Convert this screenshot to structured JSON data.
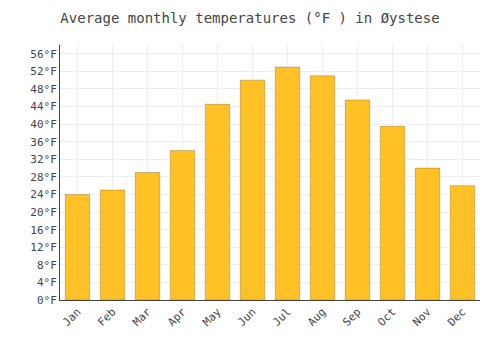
{
  "chart_data": {
    "type": "bar",
    "title": "Average monthly temperatures (°F ) in Øystese",
    "categories": [
      "Jan",
      "Feb",
      "Mar",
      "Apr",
      "May",
      "Jun",
      "Jul",
      "Aug",
      "Sep",
      "Oct",
      "Nov",
      "Dec"
    ],
    "values": [
      24.0,
      25.0,
      29.0,
      34.0,
      44.5,
      50.0,
      53.0,
      51.0,
      45.5,
      39.5,
      30.0,
      26.0
    ],
    "color": "#FFC125",
    "ylim": [
      0,
      58
    ],
    "yticks": [
      {
        "value": 0,
        "label": "0°F"
      },
      {
        "value": 4,
        "label": "4°F"
      },
      {
        "value": 8,
        "label": "8°F"
      },
      {
        "value": 12,
        "label": "12°F"
      },
      {
        "value": 16,
        "label": "16°F"
      },
      {
        "value": 20,
        "label": "20°F"
      },
      {
        "value": 24,
        "label": "24°F"
      },
      {
        "value": 28,
        "label": "28°F"
      },
      {
        "value": 32,
        "label": "32°F"
      },
      {
        "value": 36,
        "label": "36°F"
      },
      {
        "value": 40,
        "label": "40°F"
      },
      {
        "value": 44,
        "label": "44°F"
      },
      {
        "value": 48,
        "label": "48°F"
      },
      {
        "value": 52,
        "label": "52°F"
      },
      {
        "value": 56,
        "label": "56°F"
      }
    ],
    "grid": true
  }
}
